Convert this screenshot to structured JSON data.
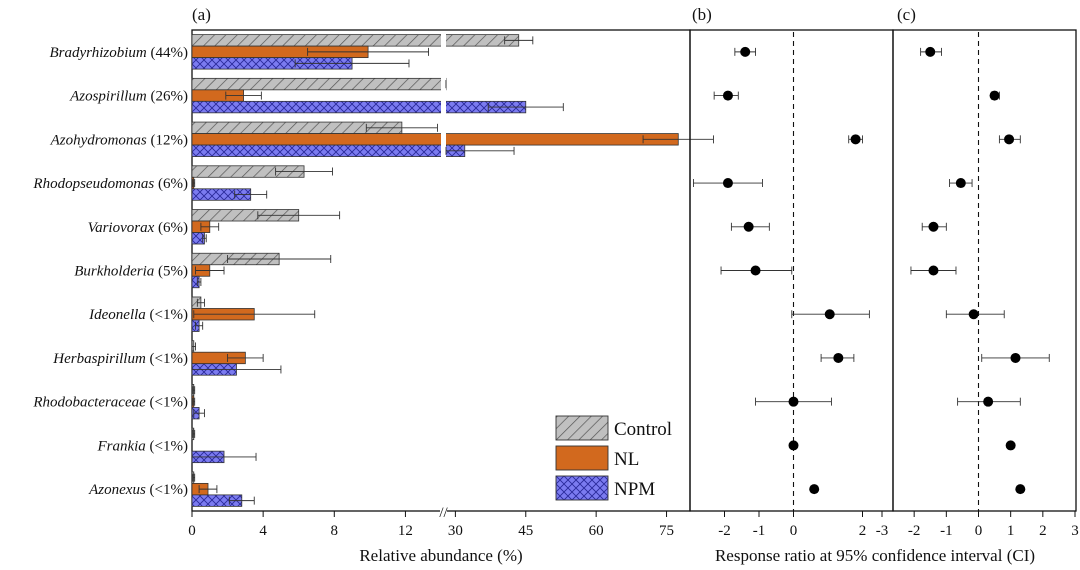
{
  "chart_data": [
    {
      "panel": "(a)",
      "type": "bar",
      "orientation": "horizontal",
      "xlabel": "Relative abundance (%)",
      "x_axis_segments": [
        {
          "range": [
            0,
            14
          ],
          "ticks": [
            0,
            4,
            8,
            12
          ]
        },
        {
          "range": [
            28,
            80
          ],
          "ticks": [
            30,
            45,
            60,
            75
          ]
        }
      ],
      "x_break_marker": "//",
      "categories": [
        {
          "name": "Bradyrhizobium",
          "share": "(44%)"
        },
        {
          "name": "Azospirillum",
          "share": "(26%)"
        },
        {
          "name": "Azohydromonas",
          "share": "(12%)"
        },
        {
          "name": "Rhodopseudomonas",
          "share": "(6%)"
        },
        {
          "name": "Variovorax",
          "share": "(6%)"
        },
        {
          "name": "Burkholderia",
          "share": "(5%)"
        },
        {
          "name": "Ideonella",
          "share": "(<1%)"
        },
        {
          "name": "Herbaspirillum",
          "share": "(<1%)"
        },
        {
          "name": "Rhodobacteraceae",
          "share": "(<1%)"
        },
        {
          "name": "Frankia",
          "share": "(<1%)"
        },
        {
          "name": "Azonexus",
          "share": "(<1%)"
        }
      ],
      "series": [
        {
          "name": "Control",
          "color": "#c0c0c0",
          "pattern": "diagonal-hatch",
          "values": [
            43.5,
            25.5,
            11.8,
            6.3,
            6.0,
            4.9,
            0.5,
            0.1,
            0.1,
            0.1,
            0.1
          ],
          "errors": [
            3.0,
            2.0,
            2.0,
            1.6,
            2.3,
            2.9,
            0.2,
            0.1,
            0.05,
            0.05,
            0.05
          ]
        },
        {
          "name": "NL",
          "color": "#d2691e",
          "pattern": "solid",
          "values": [
            9.9,
            2.9,
            77.5,
            0.1,
            1.0,
            1.0,
            3.5,
            3.0,
            0.1,
            0.0,
            0.9
          ],
          "errors": [
            3.4,
            1.0,
            7.5,
            0.05,
            0.5,
            0.8,
            3.4,
            1.0,
            0.05,
            0.0,
            0.5
          ],
          "break_bar": true
        },
        {
          "name": "NPM",
          "color": "#7b7bf0",
          "pattern": "cross-hatch",
          "values": [
            9.0,
            45.0,
            32.0,
            3.3,
            0.7,
            0.4,
            0.4,
            2.5,
            0.4,
            1.8,
            2.8
          ],
          "errors": [
            3.2,
            8.0,
            10.5,
            0.9,
            0.1,
            0.1,
            0.2,
            2.5,
            0.3,
            1.8,
            0.7
          ]
        }
      ],
      "legend": {
        "position": "bottom-right",
        "entries": [
          "Control",
          "NL",
          "NPM"
        ]
      }
    },
    {
      "panel": "(b)",
      "type": "scatter",
      "subtype": "point-with-error-bars",
      "x_range": [
        -3,
        3
      ],
      "x_ticks": [
        -2,
        -1,
        0,
        2
      ],
      "reference_line": 0,
      "points": [
        {
          "category": "Bradyrhizobium",
          "x": -1.4,
          "ci": [
            -1.7,
            -1.1
          ]
        },
        {
          "category": "Azospirillum",
          "x": -1.9,
          "ci": [
            -2.3,
            -1.6
          ]
        },
        {
          "category": "Azohydromonas",
          "x": 1.8,
          "ci": [
            1.6,
            2.0
          ]
        },
        {
          "category": "Rhodopseudomonas",
          "x": -1.9,
          "ci": [
            -2.9,
            -0.9
          ]
        },
        {
          "category": "Variovorax",
          "x": -1.3,
          "ci": [
            -1.8,
            -0.7
          ]
        },
        {
          "category": "Burkholderia",
          "x": -1.1,
          "ci": [
            -2.1,
            -0.05
          ]
        },
        {
          "category": "Ideonella",
          "x": 1.05,
          "ci": [
            -0.05,
            2.2
          ]
        },
        {
          "category": "Herbaspirillum",
          "x": 1.3,
          "ci": [
            0.8,
            1.75
          ]
        },
        {
          "category": "Rhodobacteraceae",
          "x": 0.0,
          "ci": [
            -1.1,
            1.1
          ]
        },
        {
          "category": "Frankia",
          "x": 0.0,
          "ci": [
            0.0,
            0.0
          ]
        },
        {
          "category": "Azonexus",
          "x": 0.6,
          "ci": [
            0.6,
            0.6
          ]
        }
      ]
    },
    {
      "panel": "(c)",
      "type": "scatter",
      "subtype": "point-with-error-bars",
      "x_range": [
        -3,
        3
      ],
      "x_ticks": [
        -3,
        -2,
        -1,
        0,
        1,
        2,
        3
      ],
      "reference_line": 0,
      "points": [
        {
          "category": "Bradyrhizobium",
          "x": -1.5,
          "ci": [
            -1.8,
            -1.15
          ]
        },
        {
          "category": "Azospirillum",
          "x": 0.5,
          "ci": [
            0.4,
            0.65
          ]
        },
        {
          "category": "Azohydromonas",
          "x": 0.95,
          "ci": [
            0.65,
            1.3
          ]
        },
        {
          "category": "Rhodopseudomonas",
          "x": -0.55,
          "ci": [
            -0.9,
            -0.2
          ]
        },
        {
          "category": "Variovorax",
          "x": -1.4,
          "ci": [
            -1.75,
            -1.0
          ]
        },
        {
          "category": "Burkholderia",
          "x": -1.4,
          "ci": [
            -2.1,
            -0.7
          ]
        },
        {
          "category": "Ideonella",
          "x": -0.15,
          "ci": [
            -1.0,
            0.8
          ]
        },
        {
          "category": "Herbaspirillum",
          "x": 1.15,
          "ci": [
            0.1,
            2.2
          ]
        },
        {
          "category": "Rhodobacteraceae",
          "x": 0.3,
          "ci": [
            -0.65,
            1.3
          ]
        },
        {
          "category": "Frankia",
          "x": 1.0,
          "ci": [
            1.0,
            1.0
          ]
        },
        {
          "category": "Azonexus",
          "x": 1.3,
          "ci": [
            1.3,
            1.3
          ]
        }
      ]
    }
  ],
  "shared_xlabel_bc": "Response ratio at 95% confidence interval (CI)"
}
